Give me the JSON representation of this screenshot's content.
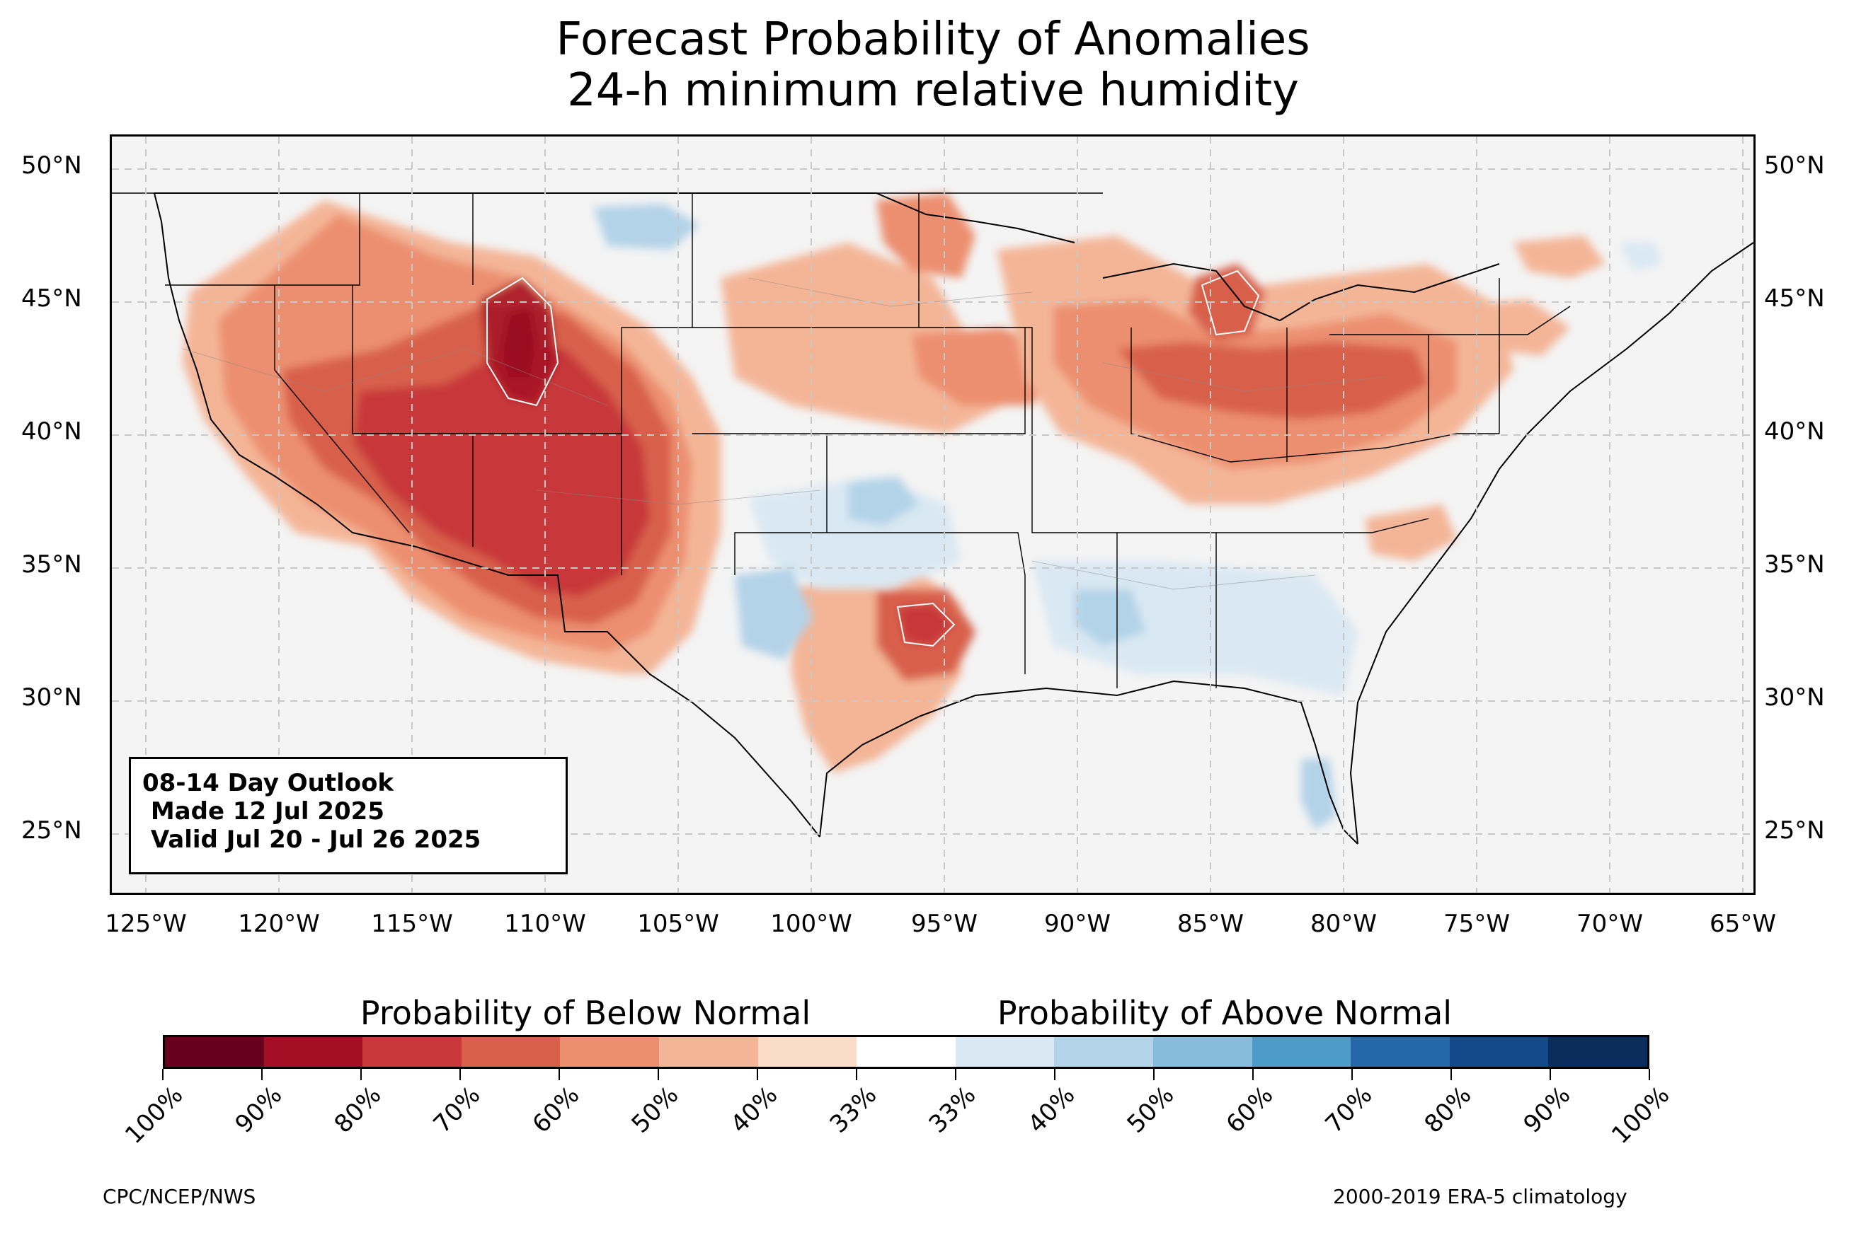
{
  "title": {
    "line1": "Forecast Probability of Anomalies",
    "line2": "24-h minimum relative humidity"
  },
  "map": {
    "lat_labels": [
      "50°N",
      "45°N",
      "40°N",
      "35°N",
      "30°N",
      "25°N"
    ],
    "lon_labels": [
      "125°W",
      "120°W",
      "115°W",
      "110°W",
      "105°W",
      "100°W",
      "95°W",
      "90°W",
      "85°W",
      "80°W",
      "75°W",
      "70°W",
      "65°W"
    ],
    "land_color": "#f4f4f4",
    "grid": "dashed",
    "anomaly_regions": [
      {
        "area": "Northwest Idaho / Montana",
        "category": "below",
        "probability": "50%"
      },
      {
        "area": "Wyoming / Utah / Colorado",
        "category": "below",
        "probability": "70%"
      },
      {
        "area": "Western Wyoming core",
        "category": "below",
        "probability": "90%"
      },
      {
        "area": "Arizona / New Mexico / Nevada",
        "category": "below",
        "probability": "70%"
      },
      {
        "area": "Great Plains",
        "category": "below",
        "probability": "40%"
      },
      {
        "area": "East Texas",
        "category": "below",
        "probability": "60%"
      },
      {
        "area": "Ohio Valley / Great Lakes",
        "category": "below",
        "probability": "60%"
      },
      {
        "area": "Northern Montana",
        "category": "above",
        "probability": "40%"
      },
      {
        "area": "Southern Plains / Oklahoma",
        "category": "above",
        "probability": "40%"
      },
      {
        "area": "Southeast / Gulf Coast",
        "category": "above",
        "probability": "40%"
      }
    ]
  },
  "info_box": {
    "line1": "08-14 Day Outlook",
    "line2": " Made 12 Jul 2025",
    "line3": " Valid Jul 20 - Jul 26 2025"
  },
  "colorbar": {
    "below_title": "Probability of Below Normal",
    "above_title": "Probability of Above Normal",
    "colors": [
      "#67001f",
      "#a50f25",
      "#c8383a",
      "#d8604b",
      "#ec8f6f",
      "#f4b597",
      "#fbdcc8",
      "#ffffff",
      "#d9e8f3",
      "#b3d3e8",
      "#86bcdc",
      "#4c9bc9",
      "#2568a9",
      "#124a8a",
      "#0a2d5e"
    ],
    "tick_labels": [
      "100%",
      "90%",
      "80%",
      "70%",
      "60%",
      "50%",
      "40%",
      "33%",
      "33%",
      "40%",
      "50%",
      "60%",
      "70%",
      "80%",
      "90%",
      "100%"
    ]
  },
  "footer": {
    "left": "CPC/NCEP/NWS",
    "right": "2000-2019 ERA-5 climatology"
  }
}
